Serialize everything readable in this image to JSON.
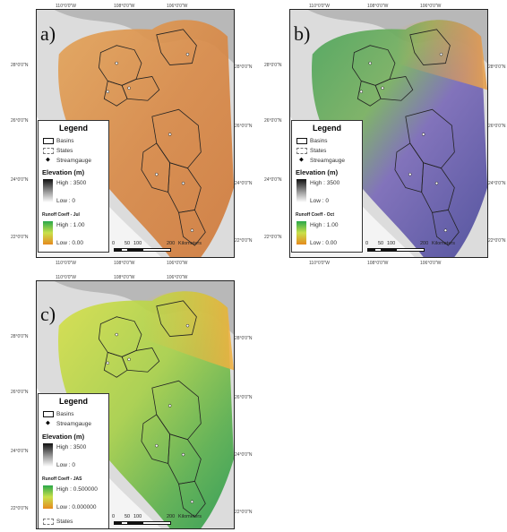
{
  "panels": [
    {
      "label": "a)",
      "legend": {
        "title": "Legend",
        "items": [
          "Basins",
          "States",
          "Streamgauge"
        ],
        "elevation_title": "Elevation (m)",
        "elevation_high": "High : 3500",
        "elevation_low": "Low : 0",
        "runoff_title": "Runoff Coeff - Jul",
        "runoff_high": "High : 1.00",
        "runoff_low": "Low : 0.00",
        "runoff_colors": [
          "#2aa84a",
          "#c9e04a",
          "#e58a1e"
        ]
      },
      "map_fill": [
        "#e3a45a",
        "#d88a48",
        "#cf7a3c"
      ]
    },
    {
      "label": "b)",
      "legend": {
        "title": "Legend",
        "items": [
          "Basins",
          "States",
          "Streamgauge"
        ],
        "elevation_title": "Elevation (m)",
        "elevation_high": "High : 3500",
        "elevation_low": "Low : 0",
        "runoff_title": "Runoff Coeff - Oct",
        "runoff_high": "High : 1.00",
        "runoff_low": "Low : 0.00",
        "runoff_colors": [
          "#2aa84a",
          "#c9e04a",
          "#e58a1e"
        ]
      },
      "map_fill": [
        "#4aa45a",
        "#7a6ab8",
        "#e5a050"
      ]
    },
    {
      "label": "c)",
      "legend": {
        "title": "Legend",
        "items": [
          "Basins",
          "Streamgauge",
          "States"
        ],
        "elevation_title": "Elevation (m)",
        "elevation_high": "High : 3500",
        "elevation_low": "Low : 0",
        "runoff_title": "Runoff Coeff - JAS",
        "runoff_high": "High : 0.500000",
        "runoff_low": "Low : 0.000000",
        "runoff_colors": [
          "#2aa84a",
          "#c9e04a",
          "#e58a1e"
        ]
      },
      "map_fill": [
        "#d8e04a",
        "#9acd4a",
        "#3aa050"
      ]
    }
  ],
  "scale": {
    "ticks": [
      "0",
      "50",
      "100",
      "200"
    ],
    "unit": "Kilometers"
  },
  "lon_labels": [
    "110°0'0\"W",
    "108°0'0\"W",
    "106°0'0\"W"
  ],
  "lat_labels": [
    "28°0'0\"N",
    "26°0'0\"N",
    "24°0'0\"N",
    "22°0'0\"N"
  ]
}
